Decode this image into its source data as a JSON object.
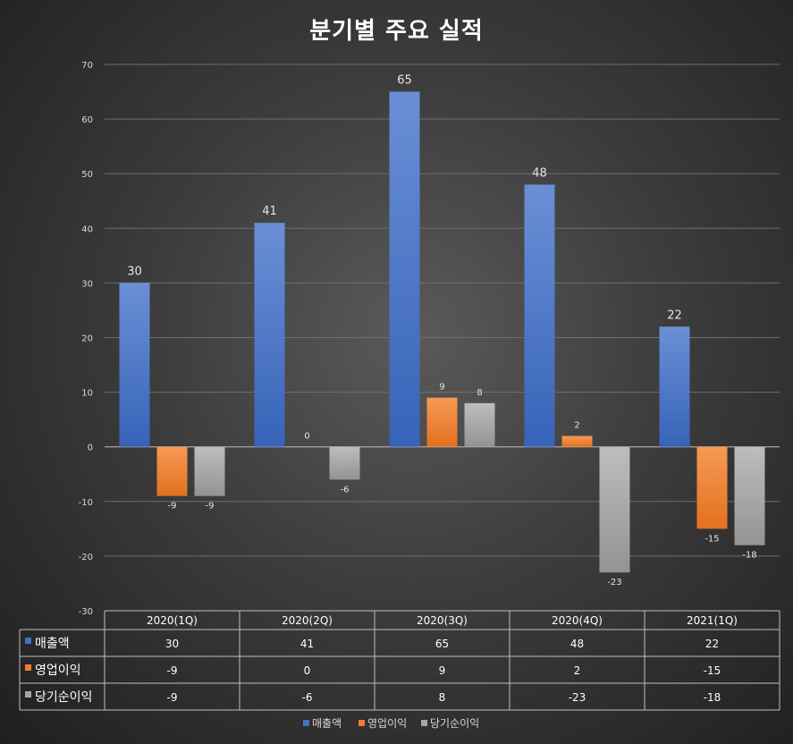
{
  "chart_data": {
    "type": "bar",
    "title": "분기별 주요 실적",
    "categories": [
      "2020(1Q)",
      "2020(2Q)",
      "2020(3Q)",
      "2020(4Q)",
      "2021(1Q)"
    ],
    "series": [
      {
        "name": "매출액",
        "values": [
          30,
          41,
          65,
          48,
          22
        ],
        "color": "#4472c4"
      },
      {
        "name": "영업이익",
        "values": [
          -9,
          0,
          9,
          2,
          -15
        ],
        "color": "#ed7d31"
      },
      {
        "name": "당기순이익",
        "values": [
          -9,
          -6,
          8,
          -23,
          -18
        ],
        "color": "#a5a5a5"
      }
    ],
    "ylim": [
      -30,
      70
    ],
    "yticks": [
      70,
      60,
      50,
      40,
      30,
      20,
      10,
      0,
      -10,
      -20,
      -30
    ],
    "grid": true,
    "legend": "bottom",
    "data_table": true
  }
}
